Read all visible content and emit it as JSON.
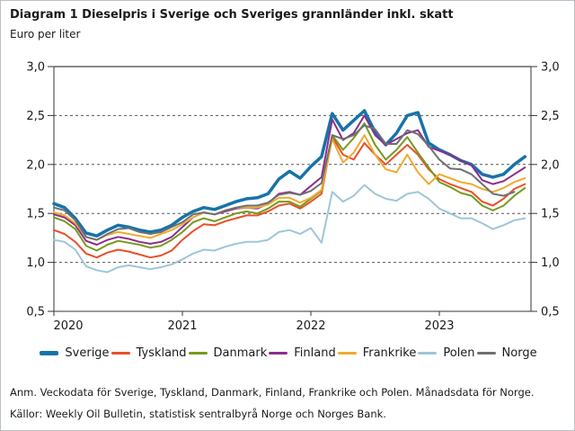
{
  "title": "Diagram 1 Dieselpris i Sverige och Sveriges grannländer inkl. skatt",
  "subtitle": "Euro per liter",
  "footnotes": {
    "note": "Anm. Veckodata för Sverige, Tyskland, Danmark, Finland, Frankrike och Polen. Månadsdata för Norge.",
    "sources": "Källor: Weekly Oil Bulletin, statistisk sentralbyrå Norge och Norges Bank."
  },
  "chart_data": {
    "type": "line",
    "title": "Dieselpris i Sverige och Sveriges grannländer inkl. skatt",
    "ylabel": "Euro per liter",
    "ylim": [
      0.5,
      3.0
    ],
    "xlim": [
      2020.0,
      2023.715
    ],
    "grid": "dashed horizontal lines at 1.0, 1.5, 2.0, 2.5; solid grey line at 3.0",
    "legend_position": "bottom",
    "x_unit": "monthly values from 2020-01 to 2023-09 (decimal years, step 1/12)",
    "x_ticks": [
      {
        "label": "2020",
        "value": 2020
      },
      {
        "label": "2021",
        "value": 2021
      },
      {
        "label": "2022",
        "value": 2022
      },
      {
        "label": "2023",
        "value": 2023
      }
    ],
    "y_ticks": [
      {
        "label": "3,0",
        "value": 3.0
      },
      {
        "label": "2,5",
        "value": 2.5
      },
      {
        "label": "2,0",
        "value": 2.0
      },
      {
        "label": "1,5",
        "value": 1.5
      },
      {
        "label": "1,0",
        "value": 1.0
      },
      {
        "label": "0,5",
        "value": 0.5
      }
    ],
    "axis_color": "#333333",
    "top_rule_color": "#8a8a8a",
    "series": [
      {
        "name": "Sverige",
        "color": "#1673a8",
        "width": 3.5,
        "values": [
          1.6,
          1.56,
          1.45,
          1.3,
          1.27,
          1.33,
          1.38,
          1.36,
          1.33,
          1.31,
          1.33,
          1.38,
          1.46,
          1.52,
          1.56,
          1.54,
          1.58,
          1.62,
          1.65,
          1.66,
          1.7,
          1.85,
          1.93,
          1.86,
          1.98,
          2.08,
          2.52,
          2.35,
          2.45,
          2.55,
          2.33,
          2.2,
          2.32,
          2.5,
          2.53,
          2.22,
          2.15,
          2.1,
          2.04,
          2.0,
          1.9,
          1.87,
          1.9,
          2.0,
          2.08
        ]
      },
      {
        "name": "Tyskland",
        "color": "#e8502a",
        "width": 2,
        "values": [
          1.33,
          1.29,
          1.21,
          1.09,
          1.05,
          1.1,
          1.13,
          1.11,
          1.08,
          1.05,
          1.07,
          1.12,
          1.23,
          1.32,
          1.39,
          1.38,
          1.42,
          1.45,
          1.48,
          1.48,
          1.52,
          1.58,
          1.6,
          1.55,
          1.62,
          1.7,
          2.28,
          2.1,
          2.05,
          2.22,
          2.1,
          2.0,
          2.1,
          2.2,
          2.1,
          1.95,
          1.85,
          1.8,
          1.76,
          1.72,
          1.62,
          1.58,
          1.65,
          1.75,
          1.8
        ]
      },
      {
        "name": "Danmark",
        "color": "#769a1e",
        "width": 2,
        "values": [
          1.46,
          1.42,
          1.34,
          1.17,
          1.12,
          1.18,
          1.22,
          1.2,
          1.18,
          1.15,
          1.17,
          1.23,
          1.31,
          1.41,
          1.45,
          1.42,
          1.46,
          1.5,
          1.52,
          1.5,
          1.55,
          1.62,
          1.62,
          1.57,
          1.65,
          1.73,
          2.3,
          2.15,
          2.27,
          2.42,
          2.2,
          2.05,
          2.15,
          2.28,
          2.12,
          1.97,
          1.82,
          1.77,
          1.71,
          1.68,
          1.58,
          1.53,
          1.58,
          1.68,
          1.76
        ]
      },
      {
        "name": "Finland",
        "color": "#8c2d8c",
        "width": 2,
        "values": [
          1.49,
          1.46,
          1.38,
          1.22,
          1.18,
          1.23,
          1.26,
          1.24,
          1.21,
          1.19,
          1.21,
          1.26,
          1.36,
          1.46,
          1.51,
          1.49,
          1.52,
          1.55,
          1.56,
          1.55,
          1.6,
          1.7,
          1.72,
          1.69,
          1.78,
          1.87,
          2.46,
          2.25,
          2.32,
          2.5,
          2.3,
          2.2,
          2.26,
          2.32,
          2.35,
          2.18,
          2.14,
          2.1,
          2.04,
          1.99,
          1.84,
          1.8,
          1.83,
          1.9,
          1.97
        ]
      },
      {
        "name": "Frankrike",
        "color": "#efaa2f",
        "width": 2,
        "values": [
          1.51,
          1.48,
          1.4,
          1.26,
          1.23,
          1.28,
          1.31,
          1.29,
          1.27,
          1.25,
          1.29,
          1.33,
          1.39,
          1.46,
          1.51,
          1.49,
          1.53,
          1.56,
          1.56,
          1.56,
          1.59,
          1.66,
          1.66,
          1.61,
          1.66,
          1.74,
          2.26,
          2.02,
          2.12,
          2.3,
          2.1,
          1.95,
          1.92,
          2.1,
          1.92,
          1.8,
          1.9,
          1.86,
          1.82,
          1.8,
          1.75,
          1.72,
          1.76,
          1.82,
          1.86
        ]
      },
      {
        "name": "Polen",
        "color": "#9ec6d8",
        "width": 2,
        "values": [
          1.23,
          1.21,
          1.13,
          0.96,
          0.92,
          0.9,
          0.95,
          0.97,
          0.95,
          0.93,
          0.95,
          0.98,
          1.03,
          1.09,
          1.13,
          1.12,
          1.16,
          1.19,
          1.21,
          1.21,
          1.23,
          1.31,
          1.33,
          1.29,
          1.35,
          1.2,
          1.72,
          1.62,
          1.68,
          1.79,
          1.7,
          1.65,
          1.63,
          1.7,
          1.72,
          1.65,
          1.55,
          1.5,
          1.45,
          1.45,
          1.4,
          1.34,
          1.38,
          1.43,
          1.45
        ]
      },
      {
        "name": "Norge",
        "color": "#6e6f72",
        "width": 2,
        "values": [
          1.56,
          1.53,
          1.43,
          1.26,
          1.23,
          1.29,
          1.34,
          1.35,
          1.31,
          1.29,
          1.31,
          1.36,
          1.41,
          1.49,
          1.51,
          1.49,
          1.53,
          1.56,
          1.58,
          1.58,
          1.61,
          1.69,
          1.71,
          1.69,
          1.73,
          1.81,
          2.3,
          2.26,
          2.3,
          2.4,
          2.36,
          2.21,
          2.21,
          2.35,
          2.31,
          2.19,
          2.05,
          1.96,
          1.95,
          1.9,
          1.8,
          1.7,
          1.68,
          1.72,
          null
        ]
      }
    ]
  }
}
